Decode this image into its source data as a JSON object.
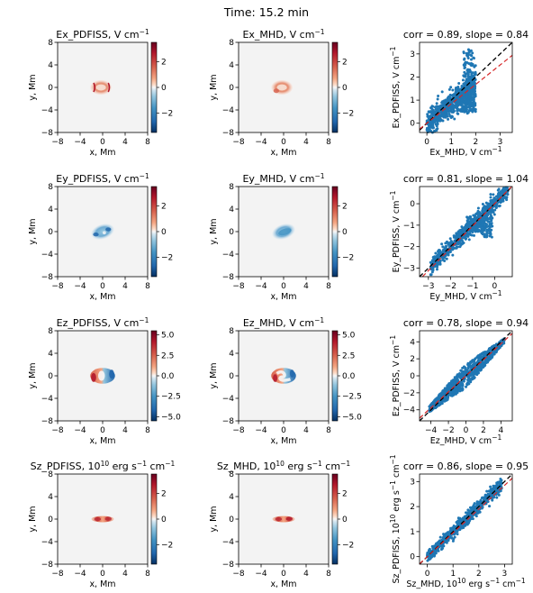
{
  "suptitle": "Time:  15.2 min",
  "colors": {
    "scatter": "#1f77b4",
    "identity_line": "#000000",
    "fit_line": "#d62728",
    "map_background": "#f3f3f3",
    "colormap": "RdBu_r"
  },
  "rows": [
    {
      "quantity": "Ex",
      "pdfiss_map": {
        "title_base": "Ex_PDFISS, V cm",
        "title_exp": "−1",
        "xlabel": "x, Mm",
        "ylabel": "y, Mm",
        "ticks": [
          "−8",
          "−4",
          "0",
          "4",
          "8"
        ],
        "xlim": [
          -8,
          8
        ],
        "ylim": [
          -8,
          8
        ],
        "cbar_ticks": [
          "2",
          "0",
          "−2"
        ],
        "cbar_range": [
          -3.5,
          3.5
        ]
      },
      "mhd_map": {
        "title_base": "Ex_MHD, V cm",
        "title_exp": "−1",
        "xlabel": "x, Mm",
        "ylabel": "y, Mm",
        "ticks": [
          "−8",
          "−4",
          "0",
          "4",
          "8"
        ],
        "xlim": [
          -8,
          8
        ],
        "ylim": [
          -8,
          8
        ],
        "cbar_ticks": [
          "2",
          "0",
          "−2"
        ],
        "cbar_range": [
          -3.5,
          3.5
        ]
      },
      "scatter": {
        "title": "corr = 0.89, slope = 0.84",
        "xlabel_base": "Ex_MHD, V cm",
        "xlabel_exp": "−1",
        "ylabel_base": "Ex_PDFISS, V cm",
        "ylabel_exp": "−1",
        "xlim": [
          -0.3,
          3.5
        ],
        "ylim": [
          -0.4,
          3.5
        ],
        "xticks": [
          0,
          1,
          2,
          3
        ],
        "yticks": [
          0,
          1,
          2,
          3
        ],
        "slope": 0.84
      }
    },
    {
      "quantity": "Ey",
      "pdfiss_map": {
        "title_base": "Ey_PDFISS, V cm",
        "title_exp": "−1",
        "xlabel": "x, Mm",
        "ylabel": "y, Mm",
        "ticks": [
          "−8",
          "−4",
          "0",
          "4",
          "8"
        ],
        "xlim": [
          -8,
          8
        ],
        "ylim": [
          -8,
          8
        ],
        "cbar_ticks": [
          "2",
          "0",
          "−2"
        ],
        "cbar_range": [
          -3.5,
          3.5
        ]
      },
      "mhd_map": {
        "title_base": "Ey_MHD, V cm",
        "title_exp": "−1",
        "xlabel": "x, Mm",
        "ylabel": "y, Mm",
        "ticks": [
          "−8",
          "−4",
          "0",
          "4",
          "8"
        ],
        "xlim": [
          -8,
          8
        ],
        "ylim": [
          -8,
          8
        ],
        "cbar_ticks": [
          "2",
          "0",
          "−2"
        ],
        "cbar_range": [
          -3.5,
          3.5
        ]
      },
      "scatter": {
        "title": "corr = 0.81, slope = 1.04",
        "xlabel_base": "Ey_MHD, V cm",
        "xlabel_exp": "−1",
        "ylabel_base": "Ey_PDFISS, V cm",
        "ylabel_exp": "−1",
        "xlim": [
          -3.4,
          0.8
        ],
        "ylim": [
          -3.4,
          0.8
        ],
        "xticks": [
          -3,
          -2,
          -1,
          0
        ],
        "yticks": [
          -3,
          -2,
          -1,
          0
        ],
        "slope": 1.04
      }
    },
    {
      "quantity": "Ez",
      "pdfiss_map": {
        "title_base": "Ez_PDFISS, V cm",
        "title_exp": "−1",
        "xlabel": "x, Mm",
        "ylabel": "y, Mm",
        "ticks": [
          "−8",
          "−4",
          "0",
          "4",
          "8"
        ],
        "xlim": [
          -8,
          8
        ],
        "ylim": [
          -8,
          8
        ],
        "cbar_ticks": [
          "5.0",
          "2.5",
          "0.0",
          "−2.5",
          "−5.0"
        ],
        "cbar_range": [
          -5.5,
          5.5
        ]
      },
      "mhd_map": {
        "title_base": "Ez_MHD, V cm",
        "title_exp": "−1",
        "xlabel": "x, Mm",
        "ylabel": "y, Mm",
        "ticks": [
          "−8",
          "−4",
          "0",
          "4",
          "8"
        ],
        "xlim": [
          -8,
          8
        ],
        "ylim": [
          -8,
          8
        ],
        "cbar_ticks": [
          "5.0",
          "2.5",
          "0.0",
          "−2.5",
          "−5.0"
        ],
        "cbar_range": [
          -5.5,
          5.5
        ]
      },
      "scatter": {
        "title": "corr = 0.78, slope = 0.94",
        "xlabel_base": "Ez_MHD, V cm",
        "xlabel_exp": "−1",
        "ylabel_base": "Ez_PDFISS, V cm",
        "ylabel_exp": "−1",
        "xlim": [
          -5.3,
          5.3
        ],
        "ylim": [
          -5.3,
          5.3
        ],
        "xticks": [
          -4,
          -2,
          0,
          2,
          4
        ],
        "yticks": [
          -4,
          -2,
          0,
          2,
          4
        ],
        "slope": 0.94
      }
    },
    {
      "quantity": "Sz",
      "pdfiss_map": {
        "title_base": "Sz_PDFISS, 10",
        "title_pow": "10",
        "title_rest": " erg s",
        "title_exp": "−1",
        "title_rest2": " cm",
        "title_exp2": "−1",
        "xlabel": "x, Mm",
        "ylabel": "y, Mm",
        "ticks": [
          "−8",
          "−4",
          "0",
          "4",
          "8"
        ],
        "xlim": [
          -8,
          8
        ],
        "ylim": [
          -8,
          8
        ],
        "cbar_ticks": [
          "2",
          "0",
          "−2"
        ],
        "cbar_range": [
          -3.5,
          3.5
        ]
      },
      "mhd_map": {
        "title_base": "Sz_MHD, 10",
        "title_pow": "10",
        "title_rest": " erg s",
        "title_exp": "−1",
        "title_rest2": " cm",
        "title_exp2": "−1",
        "xlabel": "x, Mm",
        "ylabel": "y, Mm",
        "ticks": [
          "−8",
          "−4",
          "0",
          "4",
          "8"
        ],
        "xlim": [
          -8,
          8
        ],
        "ylim": [
          -8,
          8
        ],
        "cbar_ticks": [
          "2",
          "0",
          "−2"
        ],
        "cbar_range": [
          -3.5,
          3.5
        ]
      },
      "scatter": {
        "title": "corr = 0.86, slope = 0.95",
        "xlabel_base": "Sz_MHD, 10",
        "xlabel_pow": "10",
        "xlabel_rest": " erg s",
        "xlabel_exp": "−1",
        "xlabel_rest2": " cm",
        "xlabel_exp2": "−1",
        "ylabel_base": "Sz_PDFISS, 10",
        "ylabel_pow": "10",
        "ylabel_rest": " erg s",
        "ylabel_exp": "−1",
        "ylabel_rest2": " cm",
        "ylabel_exp2": "−1",
        "xlim": [
          -0.3,
          3.3
        ],
        "ylim": [
          -0.3,
          3.3
        ],
        "xticks": [
          0,
          1,
          2,
          3
        ],
        "yticks": [
          0,
          1,
          2,
          3
        ],
        "slope": 0.95
      }
    }
  ],
  "chart_data": [
    {
      "type": "heatmap",
      "title": "Ex_PDFISS, V cm−1",
      "xlabel": "x, Mm",
      "ylabel": "y, Mm",
      "xlim": [
        -8,
        8
      ],
      "ylim": [
        -8,
        8
      ],
      "colorbar_range": [
        -3.5,
        3.5
      ]
    },
    {
      "type": "heatmap",
      "title": "Ex_MHD, V cm−1",
      "xlabel": "x, Mm",
      "ylabel": "y, Mm",
      "xlim": [
        -8,
        8
      ],
      "ylim": [
        -8,
        8
      ],
      "colorbar_range": [
        -3.5,
        3.5
      ]
    },
    {
      "type": "scatter",
      "title": "corr = 0.89, slope = 0.84",
      "xlabel": "Ex_MHD, V cm−1",
      "ylabel": "Ex_PDFISS, V cm−1",
      "xlim": [
        -0.3,
        3.5
      ],
      "ylim": [
        -0.4,
        3.5
      ],
      "fit_slope": 0.84
    },
    {
      "type": "heatmap",
      "title": "Ey_PDFISS, V cm−1",
      "xlabel": "x, Mm",
      "ylabel": "y, Mm",
      "xlim": [
        -8,
        8
      ],
      "ylim": [
        -8,
        8
      ],
      "colorbar_range": [
        -3.5,
        3.5
      ]
    },
    {
      "type": "heatmap",
      "title": "Ey_MHD, V cm−1",
      "xlabel": "x, Mm",
      "ylabel": "y, Mm",
      "xlim": [
        -8,
        8
      ],
      "ylim": [
        -8,
        8
      ],
      "colorbar_range": [
        -3.5,
        3.5
      ]
    },
    {
      "type": "scatter",
      "title": "corr = 0.81, slope = 1.04",
      "xlabel": "Ey_MHD, V cm−1",
      "ylabel": "Ey_PDFISS, V cm−1",
      "xlim": [
        -3.4,
        0.8
      ],
      "ylim": [
        -3.4,
        0.8
      ],
      "fit_slope": 1.04
    },
    {
      "type": "heatmap",
      "title": "Ez_PDFISS, V cm−1",
      "xlabel": "x, Mm",
      "ylabel": "y, Mm",
      "xlim": [
        -8,
        8
      ],
      "ylim": [
        -8,
        8
      ],
      "colorbar_range": [
        -5.5,
        5.5
      ]
    },
    {
      "type": "heatmap",
      "title": "Ez_MHD, V cm−1",
      "xlabel": "x, Mm",
      "ylabel": "y, Mm",
      "xlim": [
        -8,
        8
      ],
      "ylim": [
        -8,
        8
      ],
      "colorbar_range": [
        -5.5,
        5.5
      ]
    },
    {
      "type": "scatter",
      "title": "corr = 0.78, slope = 0.94",
      "xlabel": "Ez_MHD, V cm−1",
      "ylabel": "Ez_PDFISS, V cm−1",
      "xlim": [
        -5.3,
        5.3
      ],
      "ylim": [
        -5.3,
        5.3
      ],
      "fit_slope": 0.94
    },
    {
      "type": "heatmap",
      "title": "Sz_PDFISS, 10^10 erg s−1 cm−1",
      "xlabel": "x, Mm",
      "ylabel": "y, Mm",
      "xlim": [
        -8,
        8
      ],
      "ylim": [
        -8,
        8
      ],
      "colorbar_range": [
        -3.5,
        3.5
      ]
    },
    {
      "type": "heatmap",
      "title": "Sz_MHD, 10^10 erg s−1 cm−1",
      "xlabel": "x, Mm",
      "ylabel": "y, Mm",
      "xlim": [
        -8,
        8
      ],
      "ylim": [
        -8,
        8
      ],
      "colorbar_range": [
        -3.5,
        3.5
      ]
    },
    {
      "type": "scatter",
      "title": "corr = 0.86, slope = 0.95",
      "xlabel": "Sz_MHD, 10^10 erg s−1 cm−1",
      "ylabel": "Sz_PDFISS, 10^10 erg s−1 cm−1",
      "xlim": [
        -0.3,
        3.3
      ],
      "ylim": [
        -0.3,
        3.3
      ],
      "fit_slope": 0.95
    }
  ]
}
